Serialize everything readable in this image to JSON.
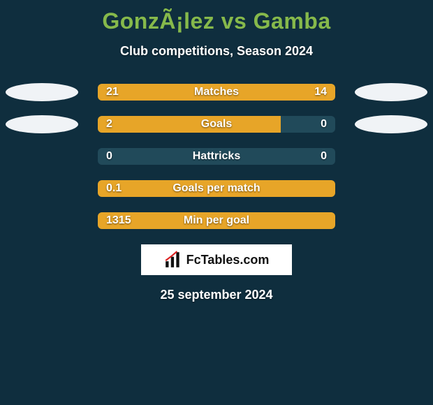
{
  "background_color": "#0f2e3e",
  "title": {
    "text": "GonzÃ¡lez vs Gamba",
    "color": "#86b94b",
    "fontsize": 32
  },
  "subtitle": {
    "text": "Club competitions, Season 2024",
    "color": "#ffffff",
    "fontsize": 18
  },
  "avatar_color": "#f0f3f6",
  "track_color": "#214a5a",
  "left_bar_color": "#e7a528",
  "right_bar_color": "#e7a528",
  "value_color": "#ffffff",
  "label_color": "#ffffff",
  "stats": [
    {
      "label": "Matches",
      "left_text": "21",
      "right_text": "14",
      "left_pct": 60,
      "right_pct": 40,
      "show_avatars": true
    },
    {
      "label": "Goals",
      "left_text": "2",
      "right_text": "0",
      "left_pct": 77,
      "right_pct": 0,
      "show_avatars": true
    },
    {
      "label": "Hattricks",
      "left_text": "0",
      "right_text": "0",
      "left_pct": 0,
      "right_pct": 0,
      "show_avatars": false
    },
    {
      "label": "Goals per match",
      "left_text": "0.1",
      "right_text": "",
      "left_pct": 100,
      "right_pct": 0,
      "show_avatars": false
    },
    {
      "label": "Min per goal",
      "left_text": "1315",
      "right_text": "",
      "left_pct": 100,
      "right_pct": 0,
      "show_avatars": false
    }
  ],
  "logo": {
    "text": "FcTables.com",
    "bg": "#ffffff",
    "color": "#111111"
  },
  "date": {
    "text": "25 september 2024",
    "color": "#ffffff"
  }
}
